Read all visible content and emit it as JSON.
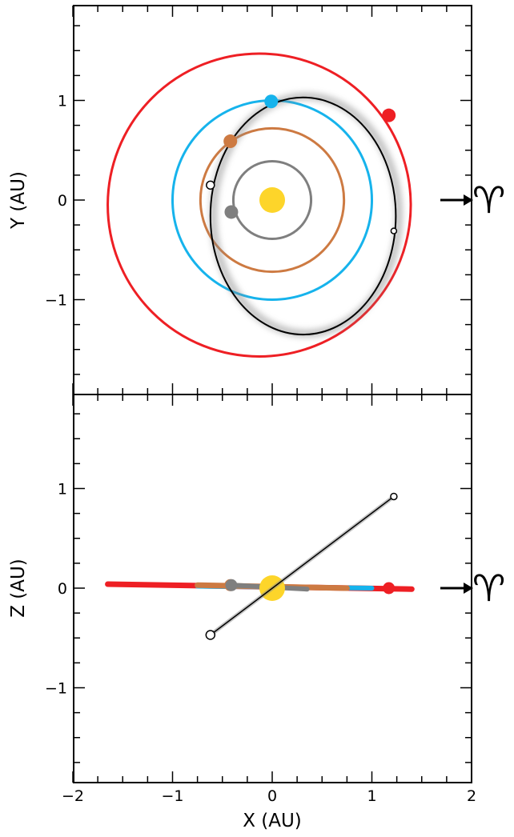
{
  "chart_data": [
    {
      "type": "scatter",
      "panel": "top",
      "title": "",
      "xlabel": "",
      "ylabel": "Y (AU)",
      "xlim": [
        -2,
        2
      ],
      "ylim": [
        -2,
        2
      ],
      "yticks": [
        -1,
        0,
        1
      ],
      "ytick_labels": [
        "−1",
        "0",
        "1"
      ],
      "grid": false,
      "sun": {
        "x": 0.0,
        "y": 0.0,
        "color": "#fdd52a"
      },
      "planet_orbits": [
        {
          "radius": 0.39,
          "color": "#7f7f7f",
          "body": {
            "x": -0.41,
            "y": -0.12
          }
        },
        {
          "radius": 0.72,
          "color": "#cd7a42",
          "body": {
            "x": -0.42,
            "y": 0.59
          }
        },
        {
          "radius": 1.0,
          "color": "#16b3ec",
          "body": {
            "x": -0.01,
            "y": 0.99
          }
        },
        {
          "radius": 1.52,
          "color": "#ee1f24",
          "center": [
            -0.13,
            -0.05
          ],
          "body": {
            "x": 1.17,
            "y": 0.85
          }
        }
      ],
      "object_orbit": {
        "color": "#000000",
        "center": [
          0.31,
          -0.16
        ],
        "semi_axes": [
          0.93,
          1.19
        ],
        "open_markers": [
          {
            "x": -0.62,
            "y": 0.15
          },
          {
            "x": 1.22,
            "y": -0.31
          }
        ]
      },
      "annotation": {
        "text": "♈",
        "pointer": "→",
        "at_y": 0
      }
    },
    {
      "type": "line",
      "panel": "bottom",
      "title": "",
      "xlabel": "X (AU)",
      "ylabel": "Z (AU)",
      "xlim": [
        -2,
        2
      ],
      "ylim": [
        -2,
        2
      ],
      "xticks": [
        -2,
        -1,
        0,
        1,
        2
      ],
      "xtick_labels": [
        "−2",
        "−1",
        "0",
        "1",
        "2"
      ],
      "yticks": [
        -1,
        0,
        1
      ],
      "ytick_labels": [
        "−1",
        "0",
        "1"
      ],
      "grid": false,
      "sun": {
        "x": 0.0,
        "z": 0.0,
        "color": "#fdd52a"
      },
      "planet_planes": [
        {
          "color": "#ee1f24",
          "x_range": [
            -1.65,
            1.4
          ],
          "z_at_min": 0.04,
          "z_at_max": -0.01,
          "body": {
            "x": 1.17,
            "z": 0.0
          }
        },
        {
          "color": "#16b3ec",
          "x_range": [
            -0.75,
            1.0
          ],
          "z_at_min": 0.02,
          "z_at_max": 0.0
        },
        {
          "color": "#cd7a42",
          "x_range": [
            -0.75,
            0.75
          ],
          "z_at_min": 0.03,
          "z_at_max": 0.0,
          "body": {
            "x": -0.42,
            "z": 0.03
          }
        },
        {
          "color": "#7f7f7f",
          "x_range": [
            -0.4,
            0.35
          ],
          "z_at_min": 0.03,
          "z_at_max": -0.01,
          "body": {
            "x": -0.41,
            "z": 0.03
          }
        }
      ],
      "object_line": {
        "color": "#000000",
        "points": [
          {
            "x": -0.62,
            "z": -0.47
          },
          {
            "x": 1.22,
            "z": 0.92
          }
        ],
        "open_markers": [
          {
            "x": -0.62,
            "z": -0.47
          },
          {
            "x": 1.22,
            "z": 0.92
          }
        ]
      },
      "annotation": {
        "text": "♈",
        "pointer": "→",
        "at_z": 0
      }
    }
  ]
}
